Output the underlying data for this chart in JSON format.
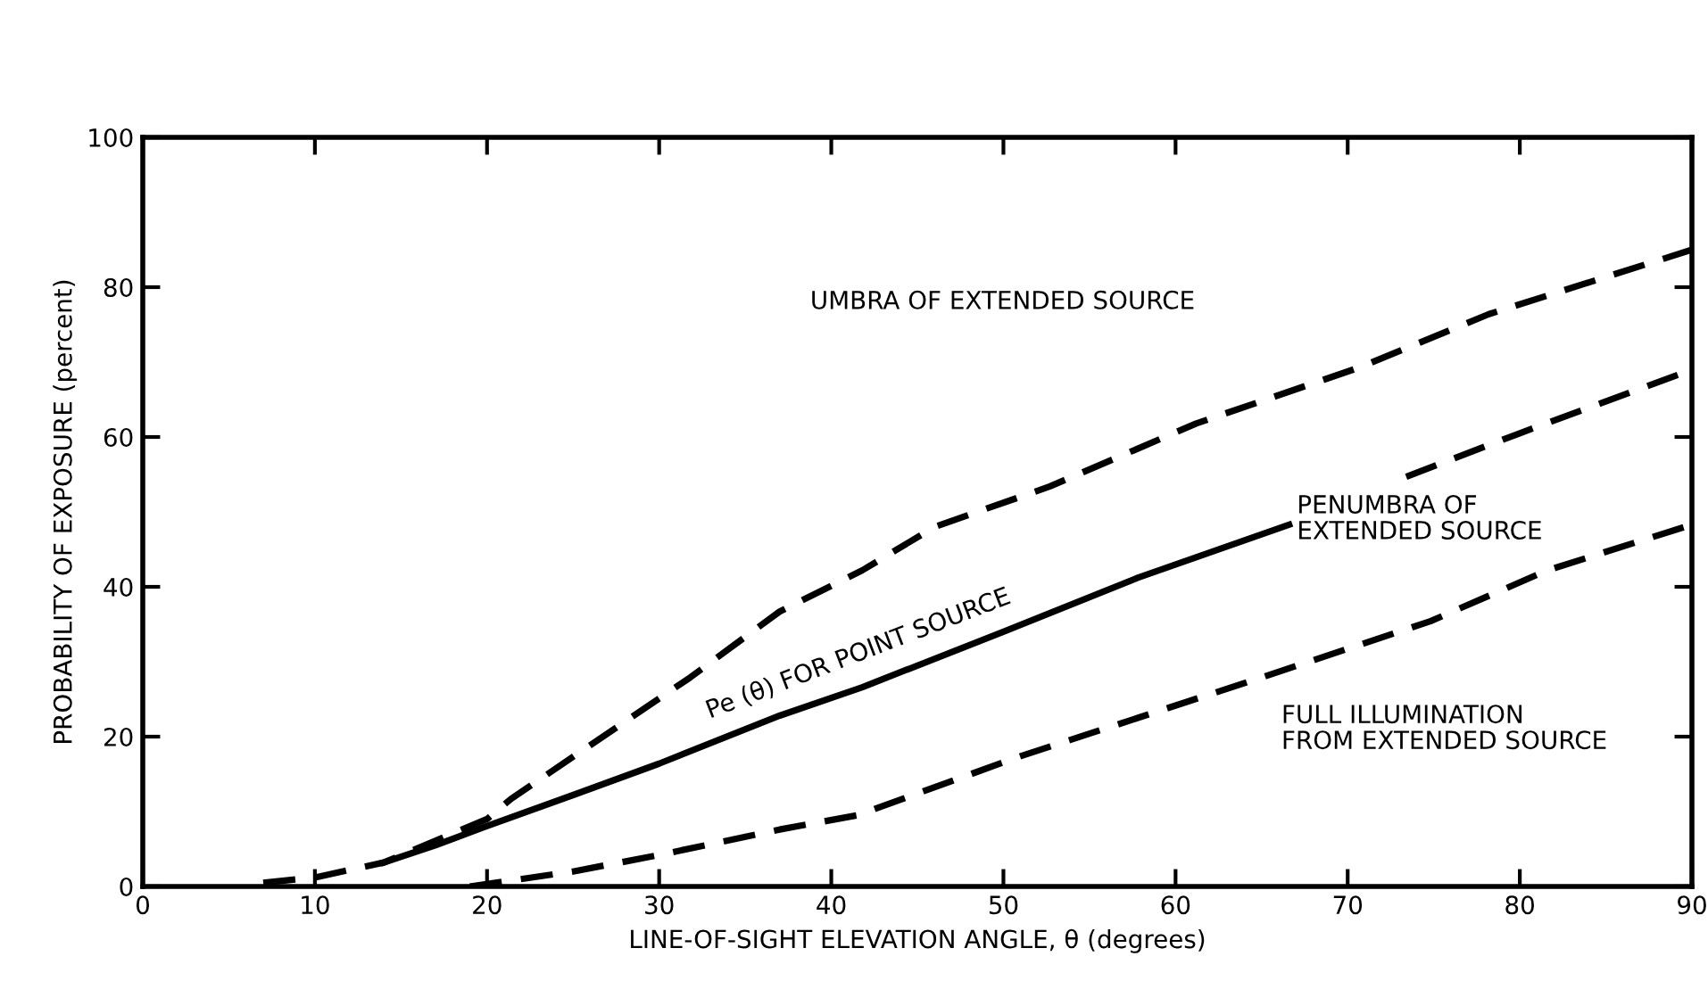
{
  "chart_data": {
    "type": "line",
    "xlabel": "LINE-OF-SIGHT ELEVATION ANGLE, θ (degrees)",
    "ylabel": "PROBABILITY OF EXPOSURE (percent)",
    "series": [
      {
        "color": "#000000",
        "line_style": "dashed",
        "x": [
          7,
          10,
          14,
          20,
          21.4,
          26.6,
          31.8,
          37,
          41.8,
          46,
          52.7,
          61.2,
          70.7,
          78.2,
          90
        ],
        "values": [
          0.5,
          1.2,
          3.2,
          9,
          11.7,
          19.8,
          27.9,
          36.7,
          42.2,
          48,
          53.4,
          61.8,
          69.3,
          76.4,
          85
        ]
      },
      {
        "color": "#000000",
        "line_style": "solid",
        "x": [
          14,
          17,
          19.8,
          25,
          30,
          37,
          41.8,
          50,
          57.8,
          66.6
        ],
        "values": [
          3.2,
          5.5,
          7.9,
          12.2,
          16.4,
          22.8,
          26.6,
          34,
          41.2,
          48.3
        ]
      },
      {
        "color": "#000000",
        "line_style": "dashed",
        "x": [
          73.4,
          80,
          90
        ],
        "values": [
          54.7,
          60.5,
          69
        ]
      },
      {
        "color": "#000000",
        "line_style": "dashed",
        "x": [
          19,
          25,
          30,
          37,
          41.5,
          51,
          64.6,
          74.8,
          81.6,
          90
        ],
        "values": [
          0,
          2,
          4.2,
          7.6,
          9.5,
          17.4,
          27.6,
          35.4,
          42.2,
          48.3
        ]
      }
    ],
    "annotations": [
      "UMBRA OF EXTENDED SOURCE",
      "Pe (θ) FOR POINT SOURCE",
      "PENUMBRA OF\nEXTENDED SOURCE",
      "FULL ILLUMINATION\nFROM EXTENDED SOURCE"
    ],
    "xlim": [
      0,
      90
    ],
    "xticks": [
      0,
      10,
      20,
      30,
      40,
      50,
      60,
      70,
      80,
      90
    ],
    "ylim": [
      0,
      100
    ],
    "yticks": [
      0,
      20,
      40,
      60,
      80,
      100
    ],
    "grid": false,
    "legend": false,
    "marker": "none"
  }
}
